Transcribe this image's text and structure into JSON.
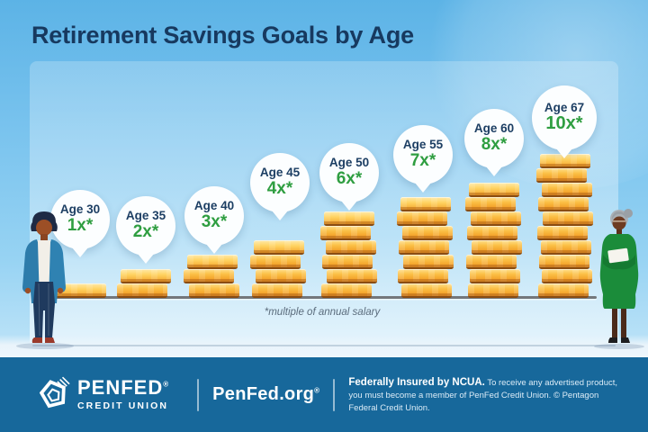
{
  "header": {
    "title": "Retirement Savings Goals by Age"
  },
  "chart_data": {
    "type": "bar",
    "title": "Retirement Savings Goals by Age",
    "categories": [
      "Age 30",
      "Age 35",
      "Age 40",
      "Age 45",
      "Age 50",
      "Age 55",
      "Age 60",
      "Age 67"
    ],
    "values": [
      1,
      2,
      3,
      4,
      6,
      7,
      8,
      10
    ],
    "value_labels": [
      "1x*",
      "2x*",
      "3x*",
      "4x*",
      "6x*",
      "7x*",
      "8x*",
      "10x*"
    ],
    "unit": "multiple of annual salary",
    "footnote": "*multiple of annual salary",
    "ylim": [
      0,
      10
    ],
    "bar_icon": "gold-coin-stack",
    "colors": {
      "age_text": "#1c3e63",
      "multiplier_text": "#2f9e41",
      "coin_gold": "#f9b233",
      "coin_rim": "#8a4d12"
    }
  },
  "illustrations": {
    "left_figure": "young-woman-standing",
    "right_figure": "senior-woman-holding-paper"
  },
  "colors": {
    "sky_blue": "#79c3ee",
    "panel_light": "#d9ecfa",
    "title_navy": "#17395f",
    "baseline_gray": "#73777b",
    "footer_blue": "#17689b"
  },
  "footer": {
    "logo": "penfed-pentagon-logo",
    "brand_name": "PENFED",
    "brand_reg": "®",
    "brand_sub": "CREDIT UNION",
    "website": "PenFed.org",
    "website_reg": "®",
    "disclaimer_bold": "Federally Insured by NCUA.",
    "disclaimer_rest": "To receive any advertised product, you must become a member of PenFed Credit Union. © Pentagon Federal Credit Union."
  }
}
